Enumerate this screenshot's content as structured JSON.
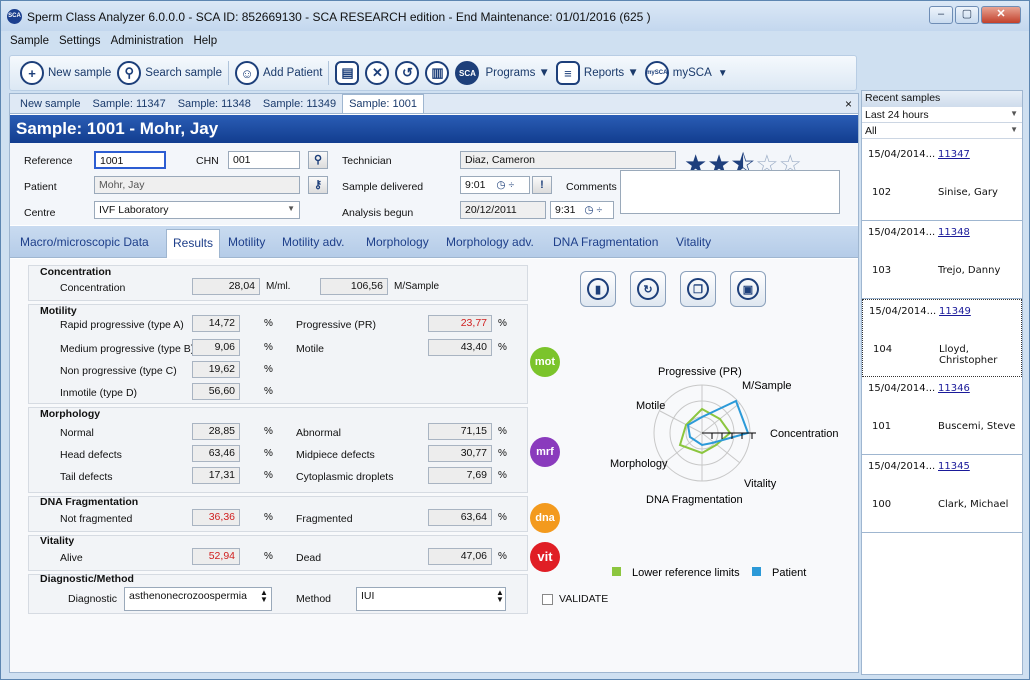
{
  "window": {
    "title": "Sperm Class Analyzer 6.0.0.0 - SCA ID: 852669130 - SCA RESEARCH edition - End Maintenance: 01/01/2016 (625 )",
    "app_icon": "SCA",
    "controls": [
      "‒",
      "▢",
      "✕"
    ]
  },
  "menu": [
    "Sample",
    "Settings",
    "Administration",
    "Help"
  ],
  "toolbar": {
    "new_sample": "New sample",
    "search_sample": "Search sample",
    "add_patient": "Add Patient",
    "sca": "SCA",
    "programs": "Programs ▼",
    "reports": "Reports ▼",
    "mysca_icon": "mySCA",
    "mysca": "mySCA"
  },
  "doc_tabs": [
    "New sample",
    "Sample: 11347",
    "Sample: 11348",
    "Sample: 11349",
    "Sample: 1001"
  ],
  "doc_close": "×",
  "sample_title": "Sample: 1001 - Mohr, Jay",
  "form": {
    "reference_label": "Reference",
    "reference": "1001",
    "chn_label": "CHN",
    "chn": "001",
    "technician_label": "Technician",
    "technician": "Diaz, Cameron",
    "patient_label": "Patient",
    "patient": "Mohr, Jay",
    "sample_delivered_label": "Sample delivered",
    "sample_delivered": "9:01",
    "comments_label": "Comments",
    "centre_label": "Centre",
    "centre": "IVF Laboratory",
    "analysis_begun_label": "Analysis begun",
    "analysis_date": "20/12/2011",
    "analysis_time": "9:31",
    "rating": 2.5
  },
  "tabs": [
    "Macro/microscopic Data",
    "Results",
    "Motility",
    "Motility adv.",
    "Morphology",
    "Morphology adv.",
    "DNA Fragmentation",
    "Vitality"
  ],
  "results": {
    "concentration": {
      "title": "Concentration",
      "label": "Concentration",
      "value": "28,04",
      "unit": "M/ml.",
      "value2": "106,56",
      "unit2": "M/Sample"
    },
    "motility": {
      "title": "Motility",
      "rapid": {
        "label": "Rapid progressive (type A)",
        "value": "14,72"
      },
      "medium": {
        "label": "Medium progressive (type B)",
        "value": "9,06"
      },
      "nonprog": {
        "label": "Non progressive (type C)",
        "value": "19,62"
      },
      "immotile": {
        "label": "Inmotile (type D)",
        "value": "56,60"
      },
      "progressive": {
        "label": "Progressive (PR)",
        "value": "23,77"
      },
      "motile": {
        "label": "Motile",
        "value": "43,40"
      },
      "badge": "mot"
    },
    "morphology": {
      "title": "Morphology",
      "normal": {
        "label": "Normal",
        "value": "28,85"
      },
      "head": {
        "label": "Head defects",
        "value": "63,46"
      },
      "tail": {
        "label": "Tail defects",
        "value": "17,31"
      },
      "abnormal": {
        "label": "Abnormal",
        "value": "71,15"
      },
      "midpiece": {
        "label": "Midpiece defects",
        "value": "30,77"
      },
      "cytoplasmic": {
        "label": "Cytoplasmic droplets",
        "value": "7,69"
      },
      "badge": "mrf"
    },
    "dna": {
      "title": "DNA Fragmentation",
      "not_fragmented": {
        "label": "Not fragmented",
        "value": "36,36"
      },
      "fragmented": {
        "label": "Fragmented",
        "value": "63,64"
      },
      "badge": "dna"
    },
    "vitality": {
      "title": "Vitality",
      "alive": {
        "label": "Alive",
        "value": "52,94"
      },
      "dead": {
        "label": "Dead",
        "value": "47,06"
      },
      "badge": "vit"
    },
    "diagnostic": {
      "title": "Diagnostic/Method",
      "diagnostic_label": "Diagnostic",
      "diagnostic": "asthenonecrozoospermia",
      "method_label": "Method",
      "method": "IUI"
    },
    "percent": "%",
    "validate": "VALIDATE"
  },
  "radar": {
    "labels": {
      "progressive": "Progressive (PR)",
      "msample": "M/Sample",
      "concentration": "Concentration",
      "vitality": "Vitality",
      "dna": "DNA Fragmentation",
      "morphology": "Morphology",
      "motile": "Motile"
    },
    "legend_lower": "Lower reference limits",
    "legend_patient": "Patient",
    "colors": {
      "lower": "#8cc63f",
      "patient": "#2c9ad8"
    }
  },
  "sidebar": {
    "title": "Recent samples",
    "filter1": "Last 24 hours",
    "filter2": "All",
    "items": [
      {
        "date": "15/04/2014...",
        "sample": "11347",
        "num": "102",
        "patient": "Sinise, Gary"
      },
      {
        "date": "15/04/2014...",
        "sample": "11348",
        "num": "103",
        "patient": "Trejo, Danny"
      },
      {
        "date": "15/04/2014...",
        "sample": "11349",
        "num": "104",
        "patient": "Lloyd, Christopher"
      },
      {
        "date": "15/04/2014...",
        "sample": "11346",
        "num": "101",
        "patient": "Buscemi, Steve"
      },
      {
        "date": "15/04/2014...",
        "sample": "11345",
        "num": "100",
        "patient": "Clark, Michael"
      }
    ]
  }
}
